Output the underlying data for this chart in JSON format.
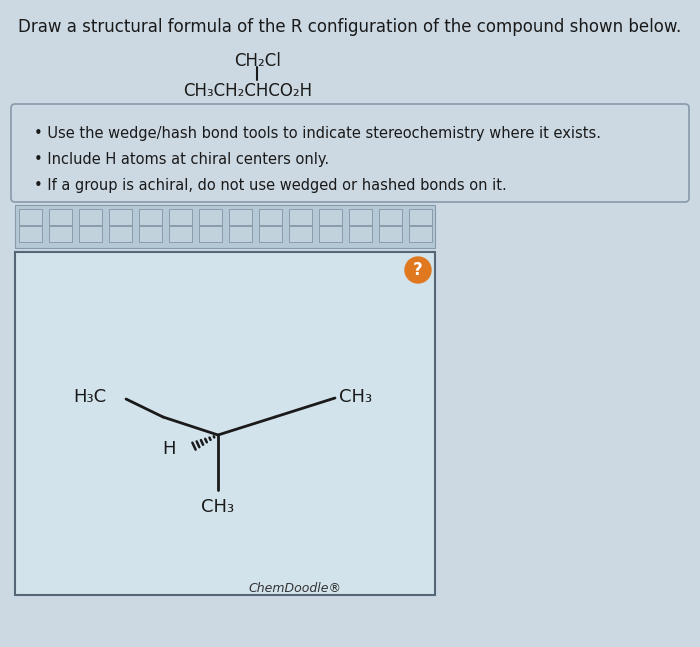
{
  "bg_color": "#ccd9e3",
  "title_text": "Draw a structural formula of the R configuration of the compound shown below.",
  "formula_line1": "CH₂Cl",
  "formula_line2": "CH₃CH₂CHCO₂H",
  "bullet_points": [
    "Use the wedge/hash bond tools to indicate stereochemistry where it exists.",
    "Include H atoms at chiral centers only.",
    "If a group is achiral, do not use wedged or hashed bonds on it."
  ],
  "chemdoodle_text": "ChemDoodle®",
  "bond_color": "#1a1a1a",
  "text_color": "#1a1a1a",
  "draw_area_color": "#d3e3ec",
  "toolbar_color": "#b5c8d5",
  "box_color": "#ccd9e3",
  "question_circle_color": "#e07820",
  "mol_label_fs": 13
}
